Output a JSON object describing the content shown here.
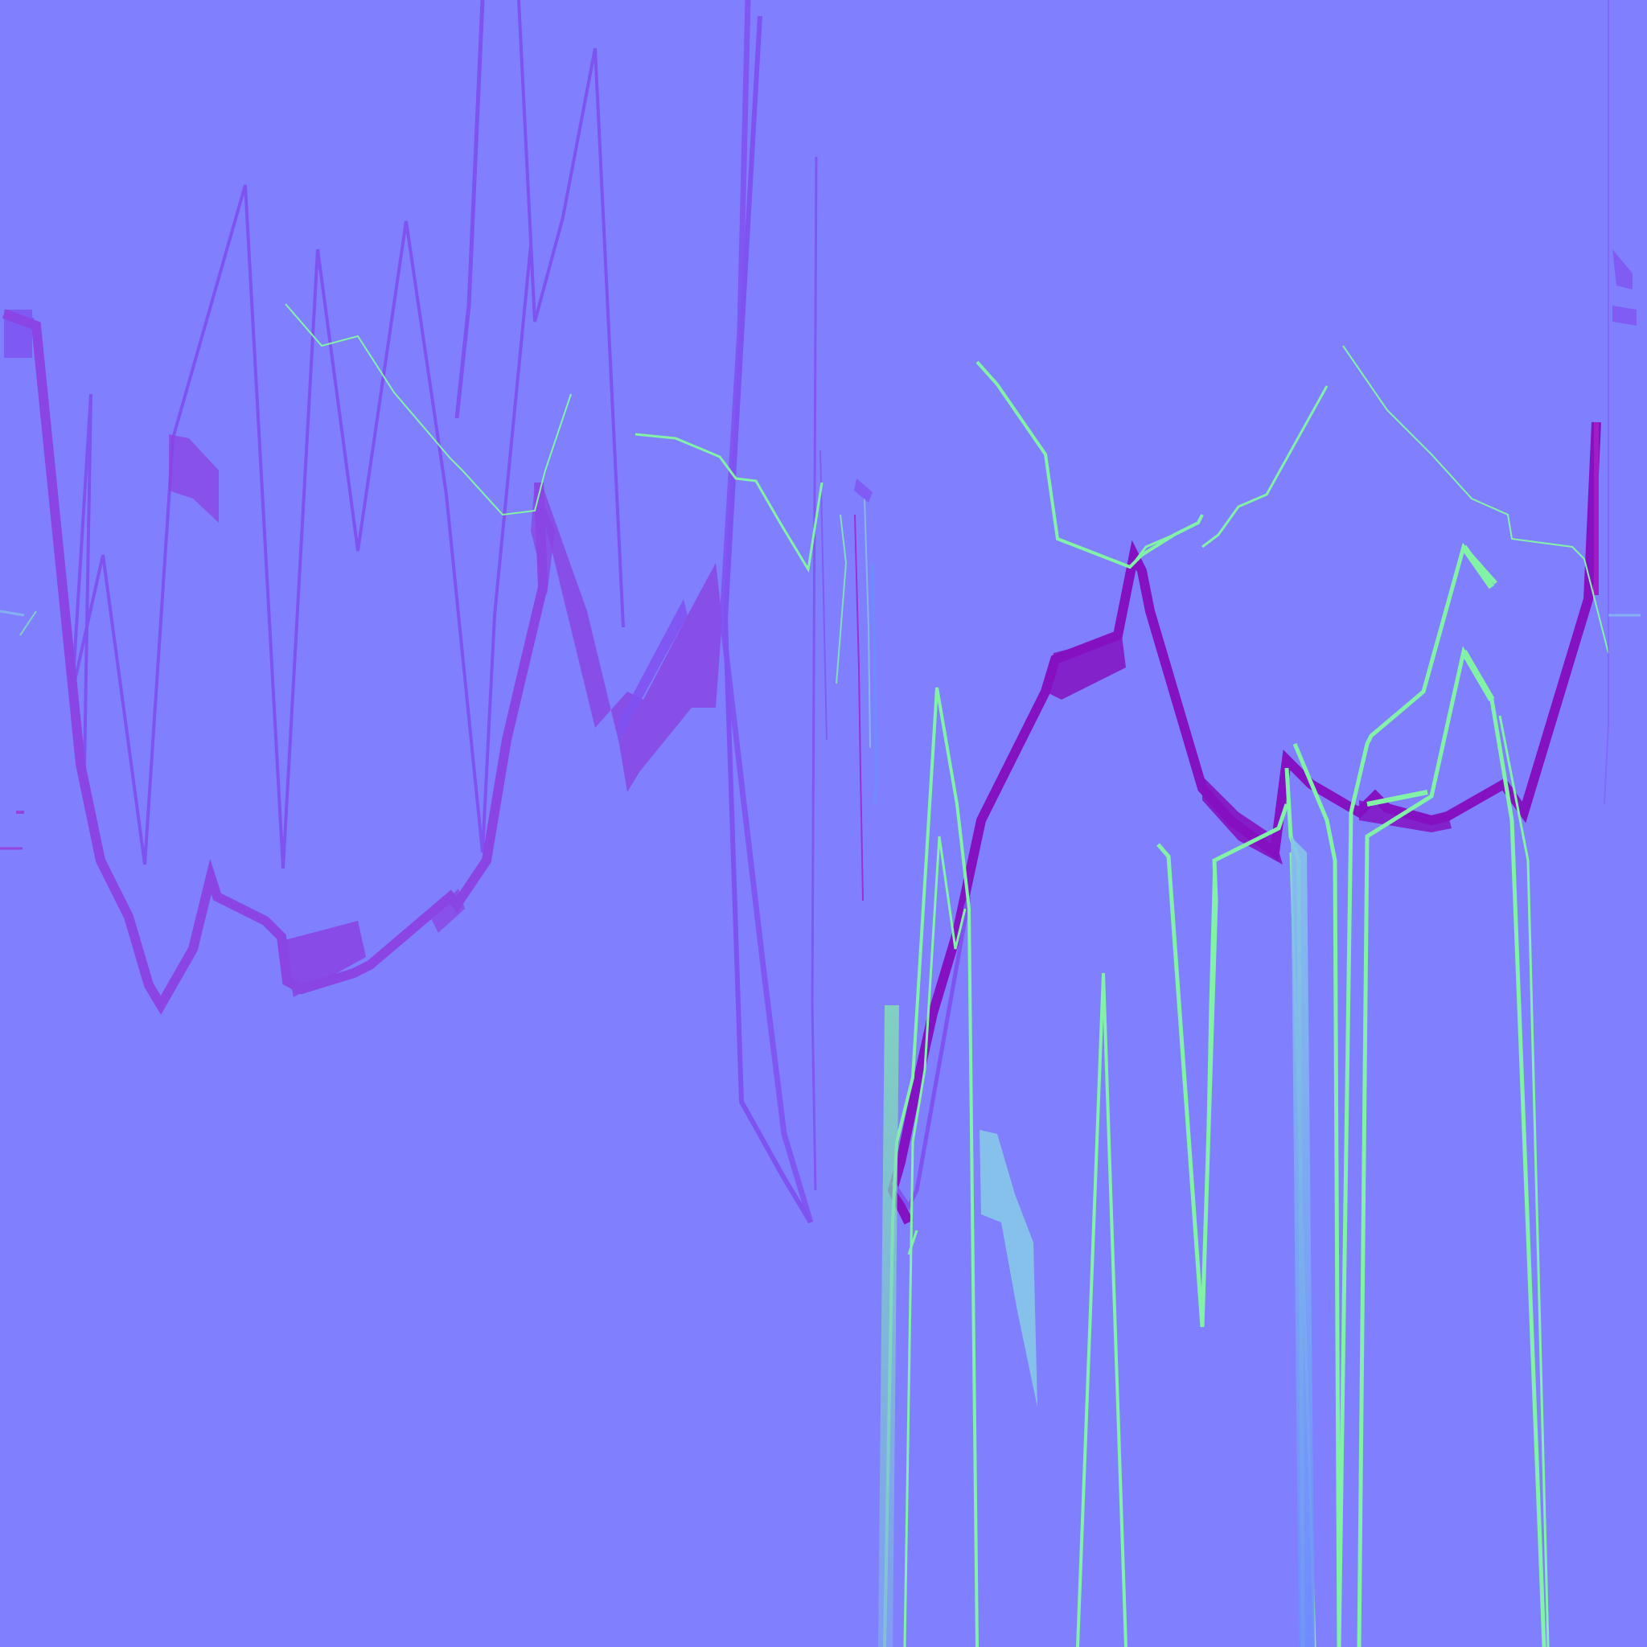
{
  "image": {
    "kind": "normal-map-texture",
    "background_color": "#8080FF",
    "stroke_palette": {
      "violet": "#7F52F2",
      "purple": "#8A45E4",
      "deep_purple": "#8411C2",
      "magenta": "#A21BC4",
      "mint": "#82F2A6",
      "sky": "#86C4EA",
      "blue": "#6E8CFF"
    }
  }
}
